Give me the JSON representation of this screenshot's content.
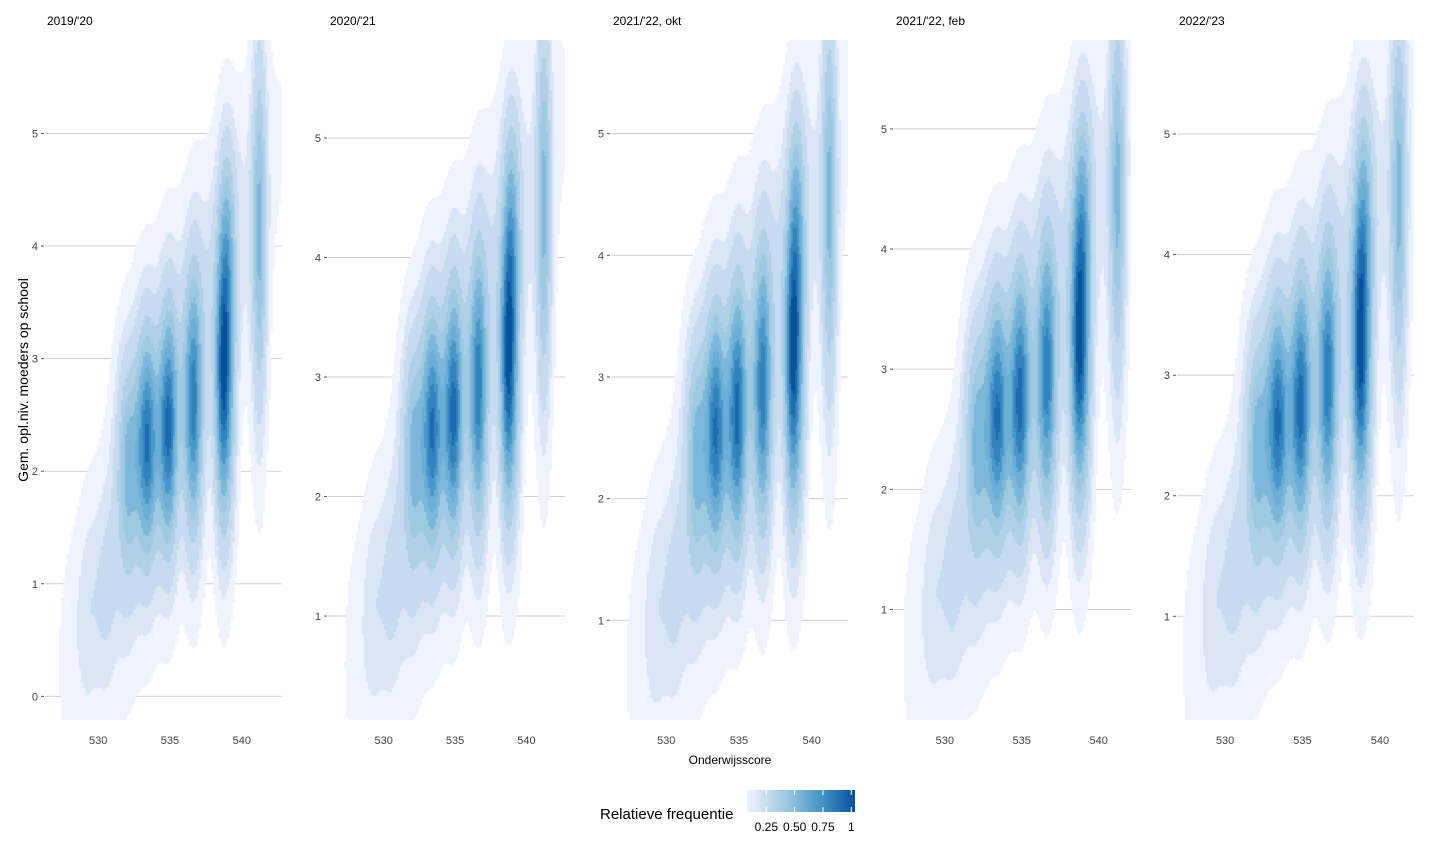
{
  "chart_data": {
    "type": "heatmap",
    "subtype": "2d-density-filled-contours",
    "xlabel": "Onderwijsscore",
    "ylabel": "Gem. opl.niv. moeders op school",
    "grid": "horizontal major only",
    "legend": {
      "title": "Relatieve frequentie",
      "placement": "bottom",
      "ticks": [
        0.25,
        0.5,
        0.75,
        1
      ],
      "tick_labels": [
        "0.25",
        "0.50",
        "0.75",
        "1"
      ],
      "colors": [
        "#eff3ff",
        "#08519c"
      ]
    },
    "facets": [
      {
        "title": "2019/'20",
        "xlim": [
          526.3,
          542.8
        ],
        "ylim": [
          -0.21,
          5.83
        ],
        "x_ticks": [
          530,
          535,
          540
        ],
        "y_ticks": [
          0,
          1,
          2,
          3,
          4,
          5
        ],
        "y_shift": -0.3
      },
      {
        "title": "2020/'21",
        "xlim": [
          526.1,
          542.7
        ],
        "ylim": [
          0.13,
          5.82
        ],
        "x_ticks": [
          530,
          535,
          540
        ],
        "y_ticks": [
          1,
          2,
          3,
          4,
          5
        ],
        "y_shift": 0
      },
      {
        "title": "2021/'22, okt",
        "xlim": [
          526.2,
          542.5
        ],
        "ylim": [
          0.18,
          5.77
        ],
        "x_ticks": [
          530,
          535,
          540
        ],
        "y_ticks": [
          1,
          2,
          3,
          4,
          5
        ],
        "y_shift": 0
      },
      {
        "title": "2021/'22, feb",
        "xlim": [
          526.7,
          542.1
        ],
        "ylim": [
          0.08,
          5.74
        ],
        "x_ticks": [
          530,
          535,
          540
        ],
        "y_ticks": [
          1,
          2,
          3,
          4,
          5
        ],
        "y_shift": 0.05
      },
      {
        "title": "2022/'23",
        "xlim": [
          526.9,
          542.2
        ],
        "ylim": [
          0.14,
          5.78
        ],
        "x_ticks": [
          530,
          535,
          540
        ],
        "y_ticks": [
          1,
          2,
          3,
          4,
          5
        ],
        "y_shift": 0.05
      }
    ],
    "density_modes": [
      {
        "x": 535.5,
        "y": 2.9,
        "sx": 3.2,
        "sy": 1.3,
        "r": 0.8,
        "w": 0.18
      },
      {
        "x": 530,
        "y": 1.2,
        "sx": 1.2,
        "sy": 0.6,
        "r": 0.3,
        "w": 0.08
      },
      {
        "x": 532,
        "y": 2.4,
        "sx": 0.5,
        "sy": 0.6,
        "r": 0,
        "w": 0.35
      },
      {
        "x": 533.3,
        "y": 2.6,
        "sx": 0.5,
        "sy": 0.65,
        "r": 0,
        "w": 0.7
      },
      {
        "x": 534.8,
        "y": 2.7,
        "sx": 0.45,
        "sy": 0.7,
        "r": 0,
        "w": 0.7
      },
      {
        "x": 536.6,
        "y": 2.85,
        "sx": 0.45,
        "sy": 0.75,
        "r": 0,
        "w": 0.6
      },
      {
        "x": 538.8,
        "y": 3.1,
        "sx": 0.4,
        "sy": 0.8,
        "r": 0,
        "w": 0.95
      },
      {
        "x": 539,
        "y": 4.3,
        "sx": 0.35,
        "sy": 0.6,
        "r": 0,
        "w": 0.35
      },
      {
        "x": 541.2,
        "y": 4.4,
        "sx": 0.35,
        "sy": 1.0,
        "r": 0,
        "w": 0.4
      }
    ]
  }
}
